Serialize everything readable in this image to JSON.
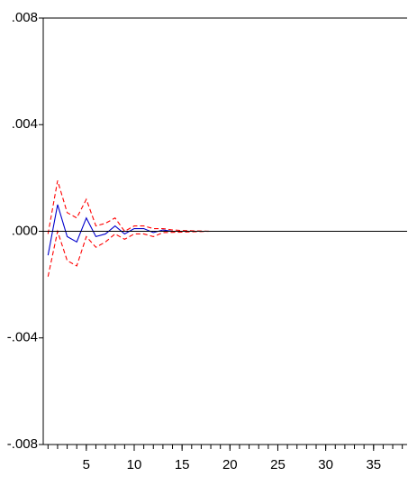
{
  "chart_data": {
    "type": "line",
    "title": "",
    "xlabel": "",
    "ylabel": "",
    "xlim": [
      0.5,
      38.5
    ],
    "ylim": [
      -0.008,
      0.008
    ],
    "y_ticks": [
      {
        "value": 0.008,
        "label": ".008"
      },
      {
        "value": 0.004,
        "label": ".004"
      },
      {
        "value": 0.0,
        "label": ".000"
      },
      {
        "value": -0.004,
        "label": "-.004"
      },
      {
        "value": -0.008,
        "label": "-.008"
      }
    ],
    "x_ticks": [
      {
        "value": 5,
        "label": "5"
      },
      {
        "value": 10,
        "label": "10"
      },
      {
        "value": 15,
        "label": "15"
      },
      {
        "value": 20,
        "label": "20"
      },
      {
        "value": 25,
        "label": "25"
      },
      {
        "value": 30,
        "label": "30"
      },
      {
        "value": 35,
        "label": "35"
      }
    ],
    "x_minor_ticks": [
      1,
      2,
      3,
      4,
      5,
      6,
      7,
      8,
      9,
      10,
      11,
      12,
      13,
      14,
      15,
      16,
      17,
      18,
      19,
      20,
      21,
      22,
      23,
      24,
      25,
      26,
      27,
      28,
      29,
      30,
      31,
      32,
      33,
      34,
      35,
      36,
      37,
      38
    ],
    "legend": "none",
    "grid": false,
    "reference_line": {
      "y": 0.0,
      "color": "#000000"
    },
    "x": [
      1,
      2,
      3,
      4,
      5,
      6,
      7,
      8,
      9,
      10,
      11,
      12,
      13,
      14,
      15,
      16,
      17,
      18,
      19,
      20,
      21,
      22,
      23,
      24,
      25,
      26,
      27,
      28,
      29,
      30,
      31,
      32,
      33,
      34,
      35,
      36,
      37,
      38
    ],
    "series": [
      {
        "role": "response",
        "color": "#0000cc",
        "style": "solid",
        "values": [
          -0.0009,
          0.001,
          -0.0002,
          -0.0004,
          0.0005,
          -0.0002,
          -0.0001,
          0.0002,
          -0.0001,
          0.0001,
          0.0001,
          -5e-05,
          5e-05,
          0.0,
          0.0,
          0.0,
          0.0,
          0.0,
          0.0,
          0.0,
          0.0,
          0.0,
          0.0,
          0.0,
          0.0,
          0.0,
          0.0,
          0.0,
          0.0,
          0.0,
          0.0,
          0.0,
          0.0,
          0.0,
          0.0,
          0.0,
          0.0,
          0.0
        ]
      },
      {
        "role": "upper-band",
        "color": "#ff0000",
        "style": "dashed",
        "values": [
          -0.0001,
          0.0019,
          0.0007,
          0.0005,
          0.0012,
          0.0002,
          0.0003,
          0.0005,
          0.0,
          0.0002,
          0.0002,
          0.0001,
          0.0001,
          5e-05,
          3e-05,
          2e-05,
          1e-05,
          0.0,
          0.0,
          0.0,
          0.0,
          0.0,
          0.0,
          0.0,
          0.0,
          0.0,
          0.0,
          0.0,
          0.0,
          0.0,
          0.0,
          0.0,
          0.0,
          0.0,
          0.0,
          0.0,
          0.0,
          0.0
        ]
      },
      {
        "role": "lower-band",
        "color": "#ff0000",
        "style": "dashed",
        "values": [
          -0.0017,
          0.0,
          -0.0011,
          -0.0013,
          -0.0002,
          -0.0006,
          -0.0004,
          -0.0001,
          -0.0003,
          -0.0001,
          -0.0001,
          -0.0002,
          -5e-05,
          -4e-05,
          -3e-05,
          -2e-05,
          -1e-05,
          0.0,
          0.0,
          0.0,
          0.0,
          0.0,
          0.0,
          0.0,
          0.0,
          0.0,
          0.0,
          0.0,
          0.0,
          0.0,
          0.0,
          0.0,
          0.0,
          0.0,
          0.0,
          0.0,
          0.0,
          0.0
        ]
      }
    ]
  }
}
